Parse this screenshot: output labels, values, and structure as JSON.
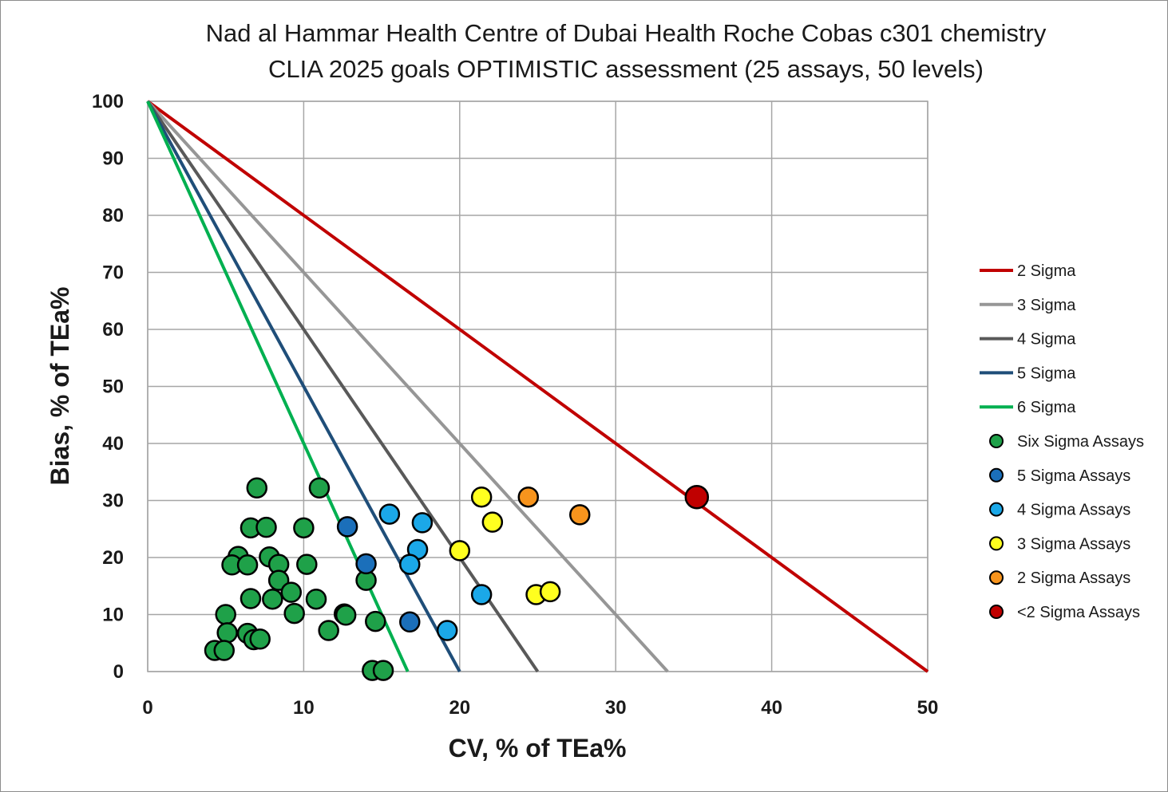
{
  "chart_data": {
    "type": "scatter",
    "title_lines": [
      "Nad al Hammar Health Centre of Dubai Health Roche Cobas c301 chemistry",
      "CLIA 2025 goals OPTIMISTIC assessment (25 assays, 50 levels)"
    ],
    "xlabel": "CV, % of TEa%",
    "ylabel": "Bias, % of TEa%",
    "xlim": [
      0,
      50
    ],
    "ylim": [
      0,
      100
    ],
    "x_ticks": [
      "0",
      "10",
      "20",
      "30",
      "40",
      "50"
    ],
    "y_ticks": [
      "0",
      "10",
      "20",
      "30",
      "40",
      "50",
      "60",
      "70",
      "80",
      "90",
      "100"
    ],
    "grid": true,
    "legend_position": "right",
    "lines": [
      {
        "name": "2 Sigma",
        "color": "#c00000",
        "x": [
          0,
          50
        ],
        "y": [
          100,
          0
        ]
      },
      {
        "name": "3 Sigma",
        "color": "#969696",
        "x": [
          0,
          33.33
        ],
        "y": [
          100,
          0
        ]
      },
      {
        "name": "4 Sigma",
        "color": "#595959",
        "x": [
          0,
          25
        ],
        "y": [
          100,
          0
        ]
      },
      {
        "name": "5 Sigma",
        "color": "#1f4e79",
        "x": [
          0,
          20
        ],
        "y": [
          100,
          0
        ]
      },
      {
        "name": "6 Sigma",
        "color": "#00b050",
        "x": [
          0,
          16.67
        ],
        "y": [
          100,
          0
        ]
      }
    ],
    "series": [
      {
        "name": "Six Sigma Assays",
        "color": "#1fa149",
        "points": [
          [
            7.0,
            32.2
          ],
          [
            11.0,
            32.2
          ],
          [
            6.6,
            25.2
          ],
          [
            7.6,
            25.3
          ],
          [
            10.0,
            25.2
          ],
          [
            5.8,
            20.2
          ],
          [
            7.8,
            20.1
          ],
          [
            5.4,
            18.7
          ],
          [
            6.4,
            18.7
          ],
          [
            8.4,
            18.8
          ],
          [
            10.2,
            18.8
          ],
          [
            8.4,
            16.0
          ],
          [
            14.0,
            16.0
          ],
          [
            6.6,
            12.8
          ],
          [
            8.0,
            12.7
          ],
          [
            9.2,
            13.9
          ],
          [
            10.8,
            12.7
          ],
          [
            5.0,
            10.0
          ],
          [
            9.4,
            10.2
          ],
          [
            12.6,
            10.1
          ],
          [
            12.7,
            9.9
          ],
          [
            14.6,
            8.8
          ],
          [
            11.6,
            7.2
          ],
          [
            5.1,
            6.8
          ],
          [
            6.4,
            6.7
          ],
          [
            6.8,
            5.6
          ],
          [
            7.2,
            5.7
          ],
          [
            4.3,
            3.7
          ],
          [
            4.9,
            3.7
          ],
          [
            14.4,
            0.2
          ],
          [
            15.1,
            0.2
          ]
        ]
      },
      {
        "name": "5 Sigma Assays",
        "color": "#1b6fba",
        "points": [
          [
            12.8,
            25.4
          ],
          [
            14.0,
            18.9
          ],
          [
            16.8,
            8.7
          ]
        ]
      },
      {
        "name": "4 Sigma Assays",
        "color": "#1ba8e8",
        "points": [
          [
            15.5,
            27.6
          ],
          [
            17.6,
            26.1
          ],
          [
            17.3,
            21.4
          ],
          [
            16.8,
            18.8
          ],
          [
            21.4,
            13.5
          ],
          [
            19.2,
            7.2
          ]
        ]
      },
      {
        "name": "3 Sigma Assays",
        "color": "#ffff1f",
        "points": [
          [
            21.4,
            30.6
          ],
          [
            22.1,
            26.2
          ],
          [
            20.0,
            21.2
          ],
          [
            24.9,
            13.5
          ],
          [
            25.8,
            14.0
          ]
        ]
      },
      {
        "name": "2 Sigma Assays",
        "color": "#f7941d",
        "points": [
          [
            24.4,
            30.6
          ],
          [
            27.7,
            27.5
          ]
        ]
      },
      {
        "name": "<2 Sigma Assays",
        "color": "#c00000",
        "points": [
          [
            35.2,
            30.6
          ]
        ]
      }
    ]
  }
}
